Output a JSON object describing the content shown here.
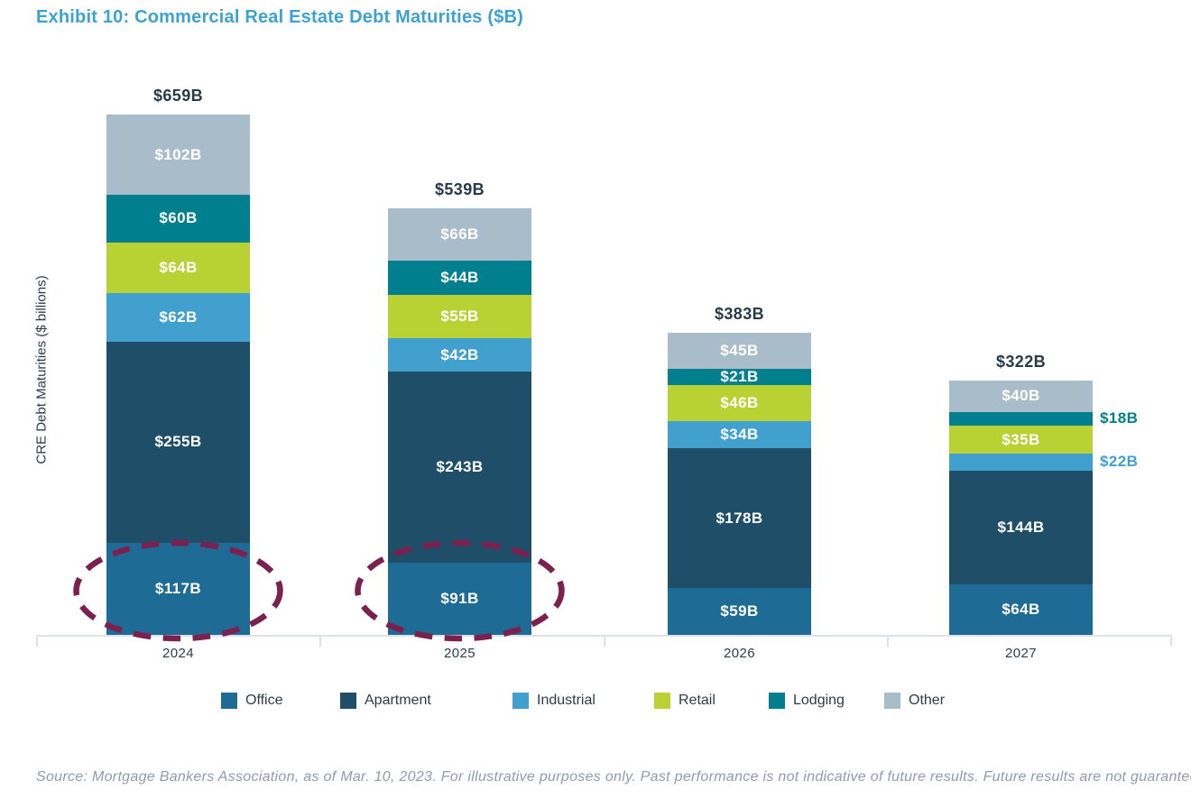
{
  "title": "Exhibit 10: Commercial Real Estate Debt Maturities ($B)",
  "source": "Source: Mortgage Bankers Association, as of Mar. 10, 2023. For illustrative purposes only. Past performance is not indicative of future results. Future results are not guaranteed.",
  "chart_data": {
    "type": "bar",
    "stacked": true,
    "title": "Exhibit 10: Commercial Real Estate Debt Maturities ($B)",
    "ylabel": "CRE Debt Maturities ($ billions)",
    "xlabel": "",
    "unit": "$ billions",
    "grid": false,
    "legend_position": "bottom",
    "categories": [
      "2024",
      "2025",
      "2026",
      "2027"
    ],
    "totals": [
      "$659B",
      "$539B",
      "$383B",
      "$322B"
    ],
    "label_format": "${v}B",
    "series": [
      {
        "name": "Office",
        "color": "#1e6c96",
        "values": [
          117,
          91,
          59,
          64
        ]
      },
      {
        "name": "Apartment",
        "color": "#1f4e68",
        "values": [
          255,
          243,
          178,
          144
        ]
      },
      {
        "name": "Industrial",
        "color": "#41a0ce",
        "values": [
          62,
          42,
          34,
          22
        ]
      },
      {
        "name": "Retail",
        "color": "#b8d133",
        "values": [
          64,
          55,
          46,
          35
        ]
      },
      {
        "name": "Lodging",
        "color": "#00808f",
        "values": [
          60,
          44,
          21,
          18
        ]
      },
      {
        "name": "Other",
        "color": "#a8bcc9",
        "values": [
          102,
          66,
          45,
          40
        ]
      }
    ],
    "outside_value_labels": [
      {
        "category": "2027",
        "series": "Lodging",
        "label": "$18B"
      },
      {
        "category": "2027",
        "series": "Industrial",
        "label": "$22B"
      }
    ],
    "annotations": {
      "type": "dashed-ellipse",
      "color": "#7b2150",
      "targets": [
        {
          "category": "2024",
          "series": "Office",
          "label": "$117B"
        },
        {
          "category": "2025",
          "series": "Office",
          "label": "$91B"
        }
      ]
    }
  }
}
